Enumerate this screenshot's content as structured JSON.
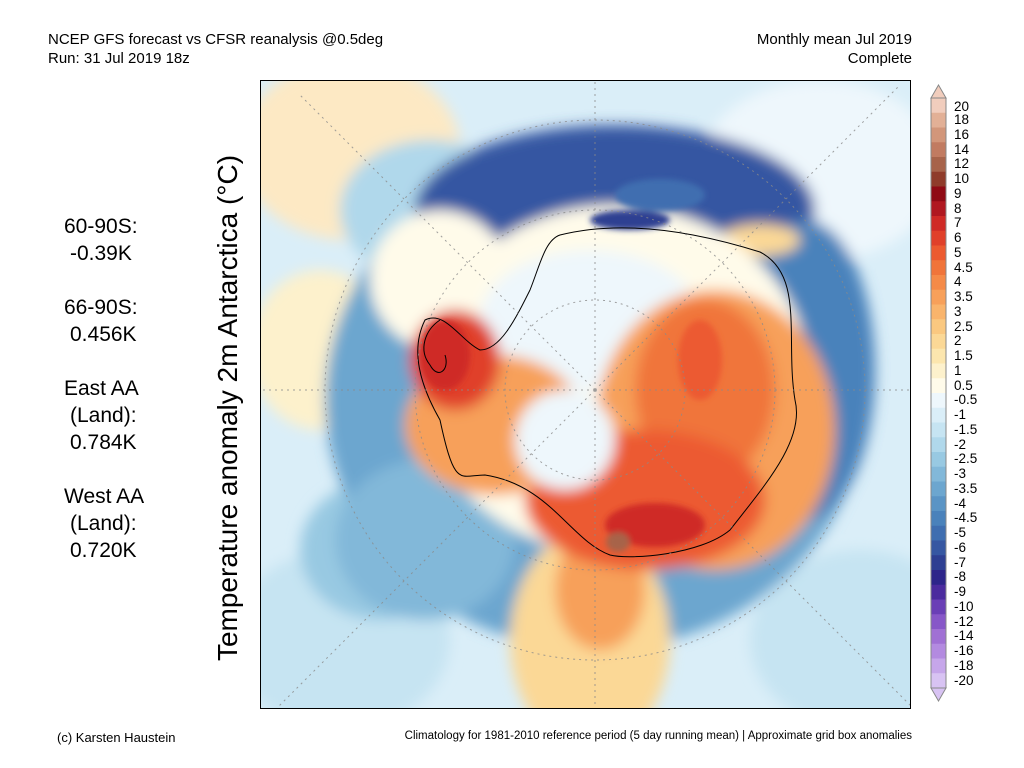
{
  "header": {
    "title_line1": "NCEP GFS forecast vs CFSR reanalysis @0.5deg",
    "title_line2": "Run: 31 Jul 2019 18z",
    "period_line1": "Monthly mean Jul 2019",
    "period_line2": "Complete"
  },
  "stats": [
    {
      "label1": "60-90S:",
      "label2": "",
      "value": "-0.39K"
    },
    {
      "label1": "66-90S:",
      "label2": "",
      "value": "0.456K"
    },
    {
      "label1": "East AA",
      "label2": "(Land):",
      "value": "0.784K"
    },
    {
      "label1": "West AA",
      "label2": "(Land):",
      "value": "0.720K"
    }
  ],
  "map": {
    "ylabel": "Temperature anomaly 2m Antarctica (°C)"
  },
  "colorbar": {
    "labels": [
      "20",
      "18",
      "16",
      "14",
      "12",
      "10",
      "9",
      "8",
      "7",
      "6",
      "5",
      "4.5",
      "4",
      "3.5",
      "3",
      "2.5",
      "2",
      "1.5",
      "1",
      "0.5",
      "-0.5",
      "-1",
      "-1.5",
      "-2",
      "-2.5",
      "-3",
      "-3.5",
      "-4",
      "-4.5",
      "-5",
      "-6",
      "-7",
      "-8",
      "-9",
      "-10",
      "-12",
      "-14",
      "-16",
      "-18",
      "-20"
    ],
    "colors": [
      "#f1cdbd",
      "#e2b096",
      "#d2967a",
      "#c17b61",
      "#a7634a",
      "#8f3b2a",
      "#8f0a14",
      "#b01820",
      "#cf2a26",
      "#e0402a",
      "#ec5a30",
      "#f0743a",
      "#f58a48",
      "#f7a05a",
      "#f9b46c",
      "#fac880",
      "#fbd896",
      "#fce6ae",
      "#fdf1cc",
      "#fffbea",
      "#eef7fc",
      "#daeef8",
      "#c6e4f2",
      "#b0d8eb",
      "#98c9e2",
      "#82b8d9",
      "#6ca6cf",
      "#5a94c5",
      "#4a82bb",
      "#3f6eb0",
      "#3657a2",
      "#2e3f92",
      "#2d258a",
      "#4b2b9e",
      "#6a3fb6",
      "#8757c8",
      "#a070d4",
      "#b38ae0",
      "#c6a6ea",
      "#d8c3f3"
    ],
    "accent_colors": {
      "warm": "#d8333a",
      "cool": "#3a5aa8",
      "neutral": "#f4f4f4"
    }
  },
  "footer": {
    "credit": "(c) Karsten Haustein",
    "note": "Climatology for 1981-2010 reference period (5 day running mean) | Approximate grid box anomalies"
  }
}
